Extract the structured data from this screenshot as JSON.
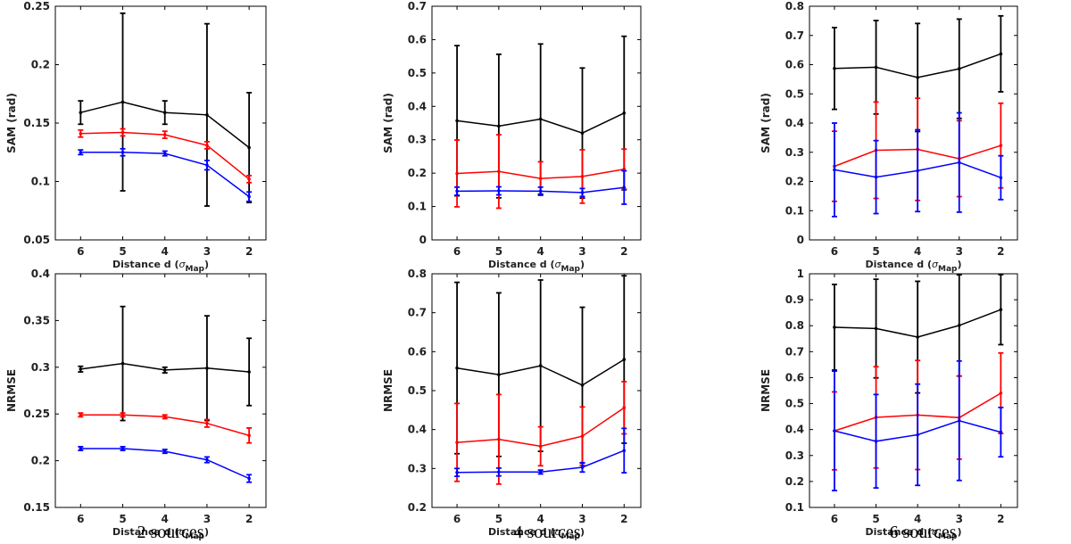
{
  "figure": {
    "captions": [
      "2 sources",
      "4 sources",
      "6 sources"
    ],
    "series_colors": {
      "black": "#000000",
      "red": "#ff0000",
      "blue": "#0000ff"
    }
  },
  "chart_data": [
    {
      "type": "line",
      "title": "",
      "xlabel": "Distance d",
      "xlabel_sub": "Map",
      "ylabel": "SAM (rad)",
      "categories": [
        "6",
        "5",
        "4",
        "3",
        "2"
      ],
      "x": [
        6,
        5,
        4,
        3,
        2
      ],
      "xlim": [
        6.6,
        1.6
      ],
      "ylim": [
        0.05,
        0.25
      ],
      "yticks": [
        0.05,
        0.1,
        0.15,
        0.2,
        0.25
      ],
      "ytick_labels": [
        "0.05",
        "0.1",
        "0.15",
        "0.2",
        "0.25"
      ],
      "series": [
        {
          "name": "black",
          "color": "#000000",
          "values": [
            0.159,
            0.168,
            0.159,
            0.157,
            0.129
          ],
          "err": [
            0.01,
            0.076,
            0.01,
            0.078,
            0.047
          ]
        },
        {
          "name": "red",
          "color": "#ff0000",
          "values": [
            0.141,
            0.142,
            0.14,
            0.131,
            0.102
          ],
          "err": [
            0.003,
            0.003,
            0.003,
            0.003,
            0.003
          ]
        },
        {
          "name": "blue",
          "color": "#0000ff",
          "values": [
            0.125,
            0.125,
            0.124,
            0.114,
            0.087
          ],
          "err": [
            0.002,
            0.003,
            0.002,
            0.004,
            0.004
          ]
        }
      ]
    },
    {
      "type": "line",
      "title": "",
      "xlabel": "Distance d",
      "xlabel_sub": "Map",
      "ylabel": "SAM (rad)",
      "categories": [
        "6",
        "5",
        "4",
        "3",
        "2"
      ],
      "x": [
        6,
        5,
        4,
        3,
        2
      ],
      "xlim": [
        6.6,
        1.6
      ],
      "ylim": [
        0,
        0.7
      ],
      "yticks": [
        0,
        0.1,
        0.2,
        0.3,
        0.4,
        0.5,
        0.6,
        0.7
      ],
      "ytick_labels": [
        "0",
        "0.1",
        "0.2",
        "0.3",
        "0.4",
        "0.5",
        "0.6",
        "0.7"
      ],
      "series": [
        {
          "name": "black",
          "color": "#000000",
          "values": [
            0.357,
            0.341,
            0.362,
            0.32,
            0.38
          ],
          "err": [
            0.225,
            0.215,
            0.225,
            0.195,
            0.23
          ]
        },
        {
          "name": "red",
          "color": "#ff0000",
          "values": [
            0.199,
            0.205,
            0.184,
            0.19,
            0.212
          ],
          "err": [
            0.1,
            0.11,
            0.05,
            0.08,
            0.06
          ]
        },
        {
          "name": "blue",
          "color": "#0000ff",
          "values": [
            0.146,
            0.147,
            0.146,
            0.142,
            0.157
          ],
          "err": [
            0.012,
            0.012,
            0.012,
            0.012,
            0.05
          ]
        }
      ]
    },
    {
      "type": "line",
      "title": "",
      "xlabel": "Distance d",
      "xlabel_sub": "Map",
      "ylabel": "SAM (rad)",
      "categories": [
        "6",
        "5",
        "4",
        "3",
        "2"
      ],
      "x": [
        6,
        5,
        4,
        3,
        2
      ],
      "xlim": [
        6.6,
        1.6
      ],
      "ylim": [
        0,
        0.8
      ],
      "yticks": [
        0,
        0.1,
        0.2,
        0.3,
        0.4,
        0.5,
        0.6,
        0.7,
        0.8
      ],
      "ytick_labels": [
        "0",
        "0.1",
        "0.2",
        "0.3",
        "0.4",
        "0.5",
        "0.6",
        "0.7",
        "0.8"
      ],
      "series": [
        {
          "name": "black",
          "color": "#000000",
          "values": [
            0.587,
            0.591,
            0.556,
            0.586,
            0.637
          ],
          "err": [
            0.14,
            0.16,
            0.185,
            0.17,
            0.13
          ]
        },
        {
          "name": "red",
          "color": "#ff0000",
          "values": [
            0.252,
            0.307,
            0.31,
            0.278,
            0.323
          ],
          "err": [
            0.12,
            0.165,
            0.175,
            0.13,
            0.145
          ]
        },
        {
          "name": "blue",
          "color": "#0000ff",
          "values": [
            0.24,
            0.215,
            0.237,
            0.265,
            0.213
          ],
          "err": [
            0.16,
            0.125,
            0.14,
            0.17,
            0.075
          ]
        }
      ]
    },
    {
      "type": "line",
      "title": "",
      "xlabel": "Distance d",
      "xlabel_sub": "Map",
      "ylabel": "NRMSE",
      "categories": [
        "6",
        "5",
        "4",
        "3",
        "2"
      ],
      "x": [
        6,
        5,
        4,
        3,
        2
      ],
      "xlim": [
        6.6,
        1.6
      ],
      "ylim": [
        0.15,
        0.4
      ],
      "yticks": [
        0.15,
        0.2,
        0.25,
        0.3,
        0.35,
        0.4
      ],
      "ytick_labels": [
        "0.15",
        "0.2",
        "0.25",
        "0.3",
        "0.35",
        "0.4"
      ],
      "series": [
        {
          "name": "black",
          "color": "#000000",
          "values": [
            0.298,
            0.304,
            0.297,
            0.299,
            0.295
          ],
          "err": [
            0.003,
            0.061,
            0.003,
            0.056,
            0.036
          ]
        },
        {
          "name": "red",
          "color": "#ff0000",
          "values": [
            0.249,
            0.249,
            0.247,
            0.24,
            0.227
          ],
          "err": [
            0.002,
            0.002,
            0.002,
            0.004,
            0.008
          ]
        },
        {
          "name": "blue",
          "color": "#0000ff",
          "values": [
            0.213,
            0.213,
            0.21,
            0.201,
            0.181
          ],
          "err": [
            0.002,
            0.002,
            0.002,
            0.003,
            0.004
          ]
        }
      ]
    },
    {
      "type": "line",
      "title": "",
      "xlabel": "Distance d",
      "xlabel_sub": "Map",
      "ylabel": "NRMSE",
      "categories": [
        "6",
        "5",
        "4",
        "3",
        "2"
      ],
      "x": [
        6,
        5,
        4,
        3,
        2
      ],
      "xlim": [
        6.6,
        1.6
      ],
      "ylim": [
        0.2,
        0.8
      ],
      "yticks": [
        0.2,
        0.3,
        0.4,
        0.5,
        0.6,
        0.7,
        0.8
      ],
      "ytick_labels": [
        "0.2",
        "0.3",
        "0.4",
        "0.5",
        "0.6",
        "0.7",
        "0.8"
      ],
      "series": [
        {
          "name": "black",
          "color": "#000000",
          "values": [
            0.558,
            0.541,
            0.564,
            0.514,
            0.58
          ],
          "err": [
            0.22,
            0.21,
            0.22,
            0.2,
            0.215
          ]
        },
        {
          "name": "red",
          "color": "#ff0000",
          "values": [
            0.367,
            0.375,
            0.357,
            0.383,
            0.456
          ],
          "err": [
            0.1,
            0.115,
            0.05,
            0.075,
            0.067
          ]
        },
        {
          "name": "blue",
          "color": "#0000ff",
          "values": [
            0.29,
            0.291,
            0.291,
            0.303,
            0.346
          ],
          "err": [
            0.01,
            0.01,
            0.005,
            0.012,
            0.057
          ]
        }
      ]
    },
    {
      "type": "line",
      "title": "",
      "xlabel": "Distance d",
      "xlabel_sub": "Map",
      "ylabel": "NRMSE",
      "categories": [
        "6",
        "5",
        "4",
        "3",
        "2"
      ],
      "x": [
        6,
        5,
        4,
        3,
        2
      ],
      "xlim": [
        6.6,
        1.6
      ],
      "ylim": [
        0.1,
        1
      ],
      "yticks": [
        0.1,
        0.2,
        0.3,
        0.4,
        0.5,
        0.6,
        0.7,
        0.8,
        0.9,
        1
      ],
      "ytick_labels": [
        "0.1",
        "0.2",
        "0.3",
        "0.4",
        "0.5",
        "0.6",
        "0.7",
        "0.8",
        "0.9",
        "1"
      ],
      "series": [
        {
          "name": "black",
          "color": "#000000",
          "values": [
            0.794,
            0.789,
            0.756,
            0.801,
            0.862
          ],
          "err": [
            0.165,
            0.19,
            0.215,
            0.195,
            0.135
          ]
        },
        {
          "name": "red",
          "color": "#ff0000",
          "values": [
            0.395,
            0.447,
            0.456,
            0.446,
            0.54
          ],
          "err": [
            0.15,
            0.195,
            0.21,
            0.16,
            0.155
          ]
        },
        {
          "name": "blue",
          "color": "#0000ff",
          "values": [
            0.395,
            0.355,
            0.38,
            0.434,
            0.39
          ],
          "err": [
            0.23,
            0.18,
            0.195,
            0.23,
            0.095
          ]
        }
      ]
    }
  ]
}
